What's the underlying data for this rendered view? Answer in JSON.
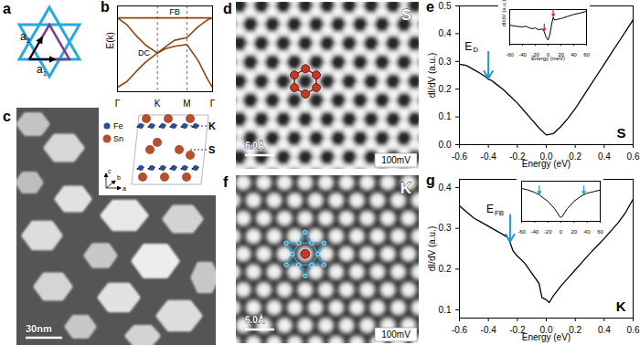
{
  "chart_data": [
    {
      "panel_label": "b",
      "type": "line",
      "y_label": "E(k)",
      "xlim": [
        0,
        1
      ],
      "xticks": [
        {
          "value": 0,
          "label": "Γ"
        },
        {
          "value": 0.42,
          "label": "K"
        },
        {
          "value": 0.73,
          "label": "M"
        },
        {
          "value": 1,
          "label": "Γ"
        }
      ],
      "ylim": [
        0,
        1
      ],
      "yticks": [],
      "tick_labels": "x",
      "grid": "x",
      "series": [
        {
          "color": "#8b4513",
          "x": [
            0,
            1
          ],
          "values": [
            0.86,
            0.86
          ]
        },
        {
          "color": "#8b4513",
          "x": [
            0,
            0.1,
            0.2,
            0.3,
            0.42,
            0.5,
            0.6,
            0.73,
            0.85,
            0.95,
            1
          ],
          "values": [
            0.05,
            0.12,
            0.24,
            0.35,
            0.45,
            0.5,
            0.53,
            0.55,
            0.36,
            0.14,
            0.05
          ]
        },
        {
          "color": "#8b4513",
          "x": [
            0,
            0.1,
            0.2,
            0.3,
            0.42,
            0.5,
            0.6,
            0.73,
            0.85,
            0.95,
            1
          ],
          "values": [
            0.86,
            0.78,
            0.65,
            0.54,
            0.45,
            0.52,
            0.6,
            0.63,
            0.76,
            0.84,
            0.86
          ]
        }
      ],
      "annotations": [
        {
          "text": "FB",
          "x": 0.6,
          "y": 0.93
        },
        {
          "text": "DC",
          "x": 0.28,
          "y": 0.45
        }
      ]
    },
    {
      "panel_label": "e",
      "type": "line",
      "x_label": "Energy (eV)",
      "y_label": "dI/dV (a.u.)",
      "xlim": [
        -0.6,
        0.6
      ],
      "xticks": [
        -0.6,
        -0.4,
        -0.2,
        {
          "value": 0,
          "label": "0.0"
        },
        0.2,
        0.4,
        0.6
      ],
      "ylim": [
        0,
        0.5
      ],
      "yticks": [
        {
          "value": 0,
          "label": "0.0"
        },
        0.1,
        0.2,
        0.3,
        0.4,
        0.5
      ],
      "x": [
        -0.6,
        -0.55,
        -0.5,
        -0.45,
        -0.42,
        -0.4,
        -0.38,
        -0.35,
        -0.3,
        -0.25,
        -0.2,
        -0.15,
        -0.1,
        -0.05,
        0,
        0.05,
        0.1,
        0.15,
        0.2,
        0.25,
        0.3,
        0.35,
        0.4,
        0.45,
        0.5,
        0.55,
        0.6
      ],
      "values": [
        0.29,
        0.285,
        0.27,
        0.255,
        0.245,
        0.235,
        0.232,
        0.22,
        0.2,
        0.175,
        0.15,
        0.12,
        0.09,
        0.06,
        0.035,
        0.04,
        0.065,
        0.095,
        0.13,
        0.17,
        0.21,
        0.25,
        0.29,
        0.33,
        0.37,
        0.41,
        0.45
      ],
      "color": "#000000",
      "sample_label": "S",
      "annotations": [
        {
          "text": "E",
          "subscript": "D",
          "x": -0.4,
          "y": 0.235,
          "color": "#1e9ad6"
        }
      ],
      "inset": {
        "type": "line",
        "x_label": "Energy (meV)",
        "y_label": "dI/dV (a.u.)",
        "xlim": [
          -60,
          60
        ],
        "xticks": [
          -60,
          -40,
          -20,
          0,
          20,
          40,
          60
        ],
        "ylim": [
          0,
          1
        ],
        "yticks": [],
        "tick_labels": "x",
        "x": [
          -60,
          -50,
          -40,
          -35,
          -30,
          -25,
          -20,
          -15,
          -10,
          -6,
          -3,
          0,
          3,
          6,
          8,
          10,
          15,
          20,
          30,
          40,
          50,
          60
        ],
        "values": [
          0.55,
          0.52,
          0.5,
          0.52,
          0.48,
          0.45,
          0.47,
          0.42,
          0.44,
          0.36,
          0.2,
          0.12,
          0.3,
          0.62,
          0.78,
          0.7,
          0.72,
          0.74,
          0.8,
          0.86,
          0.9,
          0.95
        ],
        "color": "#000000",
        "arrows": [
          {
            "x": -6,
            "y": 0.36,
            "color": "#e0302a"
          },
          {
            "x": 8,
            "y": 0.78,
            "color": "#e0302a"
          }
        ]
      }
    },
    {
      "panel_label": "g",
      "type": "line",
      "x_label": "Energy (eV)",
      "y_label": "dI/dV (a.u.)",
      "xlim": [
        -0.6,
        0.6
      ],
      "xticks": [
        -0.6,
        -0.4,
        -0.2,
        {
          "value": 0,
          "label": "0.0"
        },
        0.2,
        0.4,
        0.6
      ],
      "ylim": [
        0.08,
        0.42
      ],
      "yticks": [
        0.1,
        0.2,
        0.3,
        0.4
      ],
      "x": [
        -0.6,
        -0.55,
        -0.5,
        -0.45,
        -0.4,
        -0.35,
        -0.3,
        -0.27,
        -0.25,
        -0.23,
        -0.2,
        -0.15,
        -0.1,
        -0.05,
        -0.03,
        0,
        0.02,
        0.05,
        0.1,
        0.15,
        0.2,
        0.25,
        0.3,
        0.35,
        0.4,
        0.45,
        0.5,
        0.55,
        0.6
      ],
      "values": [
        0.355,
        0.34,
        0.325,
        0.315,
        0.305,
        0.295,
        0.285,
        0.278,
        0.265,
        0.245,
        0.232,
        0.215,
        0.19,
        0.165,
        0.13,
        0.125,
        0.118,
        0.135,
        0.158,
        0.178,
        0.198,
        0.218,
        0.238,
        0.256,
        0.275,
        0.295,
        0.315,
        0.34,
        0.372
      ],
      "color": "#000000",
      "sample_label": "K",
      "annotations": [
        {
          "text": "E",
          "subscript": "FB",
          "x": -0.25,
          "y": 0.265,
          "color": "#1e9ad6"
        }
      ],
      "inset": {
        "type": "line",
        "xlim": [
          -60,
          60
        ],
        "xticks": [
          -60,
          -40,
          -20,
          0,
          20,
          40,
          60
        ],
        "ylim": [
          0,
          1
        ],
        "yticks": [],
        "tick_labels": "x",
        "x": [
          -60,
          -50,
          -40,
          -33,
          -30,
          -20,
          -10,
          -5,
          -2,
          0,
          2,
          5,
          10,
          20,
          30,
          35,
          40,
          50,
          60
        ],
        "values": [
          0.82,
          0.78,
          0.72,
          0.66,
          0.62,
          0.5,
          0.32,
          0.2,
          0.12,
          0.1,
          0.12,
          0.2,
          0.32,
          0.5,
          0.62,
          0.66,
          0.7,
          0.74,
          0.78
        ],
        "color": "#000000",
        "arrows": [
          {
            "x": -33,
            "y": 0.66,
            "color": "#1e9ad6"
          },
          {
            "x": 35,
            "y": 0.66,
            "color": "#1e9ad6"
          }
        ]
      }
    }
  ],
  "panels": [
    {
      "panel_label": "a",
      "type": "kagome_diagram",
      "vectors": [
        {
          "text": "a",
          "subscript": "1"
        },
        {
          "text": "a",
          "subscript": "2"
        }
      ],
      "colors": [
        "#29a8e0",
        "#7a3e8e"
      ]
    },
    {
      "panel_label": "c",
      "type": "stm_topography",
      "scale_bar": "30nm",
      "inset": {
        "legend": [
          {
            "text": "Fe",
            "color": "#2c4a9a"
          },
          {
            "text": "Sn",
            "color": "#b5502e"
          }
        ],
        "layer_labels": [
          "K",
          "S"
        ],
        "axes": [
          "c",
          "b",
          "a"
        ]
      }
    },
    {
      "panel_label": "d",
      "type": "stm_atomic_honeycomb",
      "sample_label": "S",
      "scale_bar": "6.0Å",
      "bias": "100mV",
      "color": "#c0392b"
    },
    {
      "panel_label": "f",
      "type": "stm_atomic_kagome",
      "sample_label": "K",
      "scale_bar": "6.0Å",
      "bias": "100mV",
      "colors": [
        "#2a9fd8",
        "#c0392b"
      ]
    }
  ]
}
